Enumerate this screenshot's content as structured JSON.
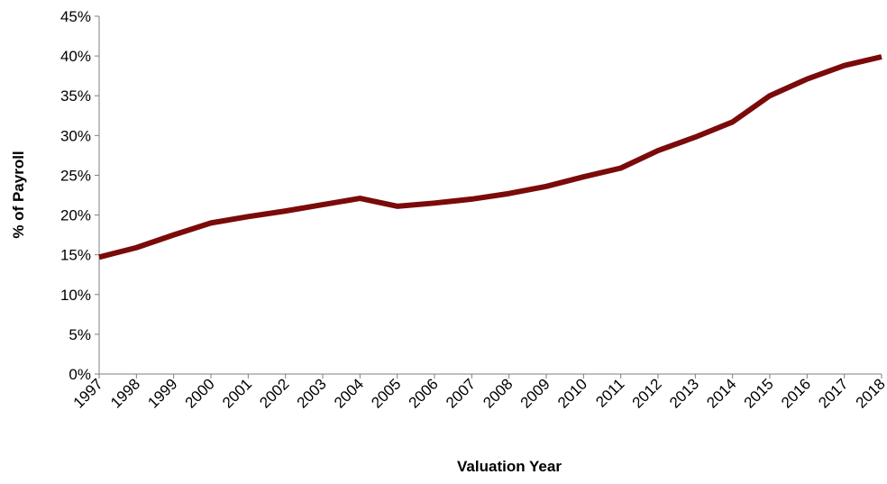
{
  "chart_data": {
    "type": "line",
    "x_label": "Valuation Year",
    "y_label": "% of Payroll",
    "categories": [
      "1997",
      "1998",
      "1999",
      "2000",
      "2001",
      "2002",
      "2003",
      "2004",
      "2005",
      "2006",
      "2007",
      "2008",
      "2009",
      "2010",
      "2011",
      "2012",
      "2013",
      "2014",
      "2015",
      "2016",
      "2017",
      "2018"
    ],
    "series": [
      {
        "name": null,
        "color": "#7b0a0a",
        "values": [
          14.7,
          15.9,
          17.5,
          19.0,
          19.8,
          20.5,
          21.3,
          22.1,
          21.1,
          21.5,
          22.0,
          22.7,
          23.6,
          24.8,
          25.9,
          28.1,
          29.8,
          31.7,
          35.0,
          37.1,
          38.8,
          39.9
        ]
      }
    ],
    "ylim": [
      0,
      45
    ],
    "yticks": [
      {
        "value": 0,
        "label": "0%"
      },
      {
        "value": 5,
        "label": "5%"
      },
      {
        "value": 10,
        "label": "10%"
      },
      {
        "value": 15,
        "label": "15%"
      },
      {
        "value": 20,
        "label": "20%"
      },
      {
        "value": 25,
        "label": "25%"
      },
      {
        "value": 30,
        "label": "30%"
      },
      {
        "value": 35,
        "label": "35%"
      },
      {
        "value": 40,
        "label": "40%"
      },
      {
        "value": 45,
        "label": "45%"
      }
    ],
    "grid": false
  }
}
